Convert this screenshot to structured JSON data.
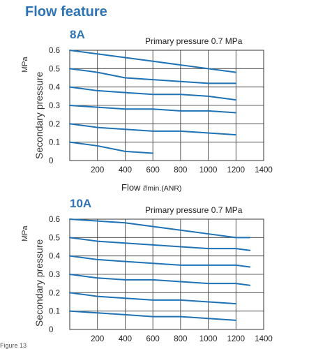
{
  "page": {
    "title": "Flow feature",
    "flow_label": "Flow",
    "flow_unit_l": "ℓ",
    "flow_unit": "/min.(ANR)",
    "footer": "Figure 13"
  },
  "charts": [
    {
      "label": "8A",
      "primary_note": "Primary pressure 0.7 MPa",
      "ylabel": "Secondary pressure",
      "yunit": "MPa"
    },
    {
      "label": "10A",
      "primary_note": "Primary pressure 0.7 MPa",
      "ylabel": "Secondary pressure",
      "yunit": "MPa"
    }
  ],
  "colors": {
    "title": "#2e74b5",
    "line": "#1f72b4",
    "grid": "#333333"
  },
  "chart_data": [
    {
      "type": "line",
      "title": "8A",
      "xlabel": "Flow ℓ/min.(ANR)",
      "ylabel": "Secondary pressure MPa",
      "xlim": [
        0,
        1400
      ],
      "ylim": [
        0,
        0.6
      ],
      "xticks": [
        "200",
        "400",
        "600",
        "800",
        "1000",
        "1200",
        "1400"
      ],
      "yticks": [
        "0",
        "0.1",
        "0.2",
        "0.3",
        "0.4",
        "0.5",
        "0.6"
      ],
      "grid": true,
      "series": [
        {
          "x": [
            0,
            200,
            400,
            600,
            800,
            1000,
            1200
          ],
          "y": [
            0.6,
            0.58,
            0.56,
            0.54,
            0.52,
            0.5,
            0.48
          ]
        },
        {
          "x": [
            0,
            200,
            400,
            600,
            800,
            1000,
            1200
          ],
          "y": [
            0.5,
            0.48,
            0.45,
            0.44,
            0.43,
            0.42,
            0.42
          ]
        },
        {
          "x": [
            0,
            200,
            400,
            600,
            800,
            1000,
            1200
          ],
          "y": [
            0.4,
            0.38,
            0.37,
            0.36,
            0.36,
            0.35,
            0.33
          ]
        },
        {
          "x": [
            0,
            200,
            400,
            600,
            800,
            1000,
            1200
          ],
          "y": [
            0.3,
            0.29,
            0.28,
            0.28,
            0.27,
            0.27,
            0.26
          ]
        },
        {
          "x": [
            0,
            200,
            400,
            600,
            800,
            1000,
            1200
          ],
          "y": [
            0.2,
            0.18,
            0.17,
            0.16,
            0.16,
            0.15,
            0.14
          ]
        },
        {
          "x": [
            0,
            200,
            400,
            600
          ],
          "y": [
            0.1,
            0.08,
            0.05,
            0.04
          ]
        }
      ]
    },
    {
      "type": "line",
      "title": "10A",
      "xlabel": "Flow ℓ/min.(ANR)",
      "ylabel": "Secondary pressure MPa",
      "xlim": [
        0,
        1400
      ],
      "ylim": [
        0,
        0.6
      ],
      "xticks": [
        "200",
        "400",
        "600",
        "800",
        "1000",
        "1200",
        "1400"
      ],
      "yticks": [
        "0",
        "0.1",
        "0.2",
        "0.3",
        "0.4",
        "0.5",
        "0.6"
      ],
      "grid": true,
      "series": [
        {
          "x": [
            0,
            200,
            400,
            600,
            800,
            1000,
            1200,
            1300
          ],
          "y": [
            0.6,
            0.59,
            0.58,
            0.56,
            0.54,
            0.52,
            0.5,
            0.5
          ]
        },
        {
          "x": [
            0,
            200,
            400,
            600,
            800,
            1000,
            1200,
            1300
          ],
          "y": [
            0.5,
            0.48,
            0.47,
            0.46,
            0.45,
            0.44,
            0.44,
            0.43
          ]
        },
        {
          "x": [
            0,
            200,
            400,
            600,
            800,
            1000,
            1200,
            1300
          ],
          "y": [
            0.4,
            0.38,
            0.37,
            0.36,
            0.35,
            0.35,
            0.35,
            0.34
          ]
        },
        {
          "x": [
            0,
            200,
            400,
            600,
            800,
            1000,
            1200,
            1300
          ],
          "y": [
            0.3,
            0.28,
            0.27,
            0.27,
            0.26,
            0.25,
            0.25,
            0.24
          ]
        },
        {
          "x": [
            0,
            200,
            400,
            600,
            800,
            1000,
            1200
          ],
          "y": [
            0.2,
            0.18,
            0.17,
            0.16,
            0.16,
            0.15,
            0.14
          ]
        },
        {
          "x": [
            0,
            200,
            400,
            600,
            800,
            1000,
            1200
          ],
          "y": [
            0.1,
            0.09,
            0.08,
            0.07,
            0.07,
            0.06,
            0.05
          ]
        }
      ]
    }
  ]
}
